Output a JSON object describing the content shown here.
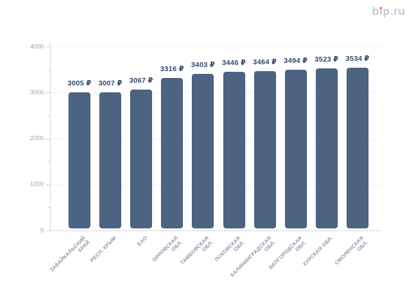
{
  "header": {
    "logo_text": "bip.ru",
    "logo_color": "#c7cbd9",
    "logo_dot_color": "#f4846c"
  },
  "chart_data": {
    "type": "bar",
    "title": "",
    "xlabel": "",
    "ylabel": "",
    "categories": [
      "ЗАБАЙКАЛЬСКИЙ КРАЙ",
      "РЕСП. КРЫМ",
      "ЕАО",
      "ОРЛОВСКАЯ ОБЛ.",
      "ТАМБОВСКАЯ ОБЛ.",
      "ПСКОВСКАЯ ОБЛ.",
      "КАЛИНИНГРАДСКАЯ ОБЛ.",
      "БЕЛГОРОДСКАЯ ОБЛ.",
      "КУРСКАЯ ОБЛ.",
      "СМОЛЕНСКАЯ ОБЛ."
    ],
    "category_lines": [
      [
        "ЗАБАЙКАЛЬСКИЙ",
        "КРАЙ"
      ],
      [
        "РЕСП. КРЫМ"
      ],
      [
        "ЕАО"
      ],
      [
        "ОРЛОВСКАЯ",
        "ОБЛ."
      ],
      [
        "ТАМБОВСКАЯ",
        "ОБЛ."
      ],
      [
        "ПСКОВСКАЯ",
        "ОБЛ."
      ],
      [
        "КАЛИНИНГРАДСКАЯ",
        "ОБЛ."
      ],
      [
        "БЕЛГОРОДСКАЯ",
        "ОБЛ."
      ],
      [
        "КУРСКАЯ ОБЛ."
      ],
      [
        "СМОЛЕНСКАЯ",
        "ОБЛ."
      ]
    ],
    "values": [
      3005,
      3007,
      3067,
      3316,
      3403,
      3446,
      3464,
      3494,
      3523,
      3534
    ],
    "value_suffix": " ₽",
    "ylim": [
      0,
      4000
    ],
    "yticks": [
      0,
      1000,
      2000,
      3000,
      4000
    ],
    "ytick_labels": [
      "0",
      "1000",
      "2000",
      "3000",
      "4000"
    ],
    "minor_ytick_step": 500,
    "grid": "horizontal-dotted",
    "legend": "none",
    "colors": {
      "bar": "#4d6382",
      "value_label": "#36486a",
      "x_tick_label": "#8d97a8",
      "y_tick_label": "#9aa2ad",
      "gridline": "#e4e6ea",
      "axis_line": "#d9dce2",
      "tick_mark": "#ccd2da"
    }
  }
}
